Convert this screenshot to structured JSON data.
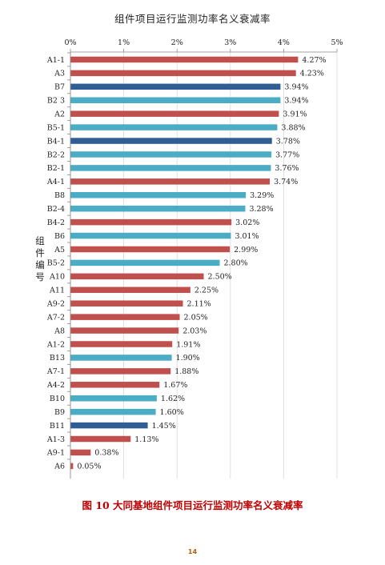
{
  "chart_data": {
    "type": "bar",
    "orientation": "horizontal",
    "title": "组件项目运行监测功率名义衰减率",
    "ylabel": "组件编号",
    "xlim": [
      0,
      5
    ],
    "x_ticks": [
      "0%",
      "1%",
      "2%",
      "3%",
      "4%",
      "5%"
    ],
    "gridlines": true,
    "categories": [
      "A1-1",
      "A3",
      "B7",
      "B2 3",
      "A2",
      "B5-1",
      "B4-1",
      "B2-2",
      "B2-1",
      "A4-1",
      "B8",
      "B2-4",
      "B4-2",
      "B6",
      "A5",
      "B5-2",
      "A10",
      "A11",
      "A9-2",
      "A7-2",
      "A8",
      "A1-2",
      "B13",
      "A7-1",
      "A4-2",
      "B10",
      "B9",
      "B11",
      "A1-3",
      "A9-1",
      "A6"
    ],
    "values": [
      4.27,
      4.23,
      3.94,
      3.94,
      3.91,
      3.88,
      3.78,
      3.77,
      3.76,
      3.74,
      3.29,
      3.28,
      3.02,
      3.01,
      2.99,
      2.8,
      2.5,
      2.25,
      2.11,
      2.05,
      2.03,
      1.91,
      1.9,
      1.88,
      1.67,
      1.62,
      1.6,
      1.45,
      1.13,
      0.38,
      0.05
    ],
    "labels": [
      "4.27%",
      "4.23%",
      "3.94%",
      "3.94%",
      "3.91%",
      "3.88%",
      "3.78%",
      "3.77%",
      "3.76%",
      "3.74%",
      "3.29%",
      "3.28%",
      "3.02%",
      "3.01%",
      "2.99%",
      "2.80%",
      "2.50%",
      "2.25%",
      "2.11%",
      "2.05%",
      "2.03%",
      "1.91%",
      "1.90%",
      "1.88%",
      "1.67%",
      "1.62%",
      "1.60%",
      "1.45%",
      "1.13%",
      "0.38%",
      "0.05%"
    ],
    "bar_colors": [
      "#c0504d",
      "#c0504d",
      "#2f5d94",
      "#4bacc6",
      "#c0504d",
      "#4bacc6",
      "#2f5d94",
      "#4bacc6",
      "#4bacc6",
      "#c0504d",
      "#4bacc6",
      "#4bacc6",
      "#c0504d",
      "#4bacc6",
      "#c0504d",
      "#4bacc6",
      "#c0504d",
      "#c0504d",
      "#c0504d",
      "#c0504d",
      "#c0504d",
      "#c0504d",
      "#4bacc6",
      "#c0504d",
      "#c0504d",
      "#4bacc6",
      "#4bacc6",
      "#2f5d94",
      "#c0504d",
      "#c0504d",
      "#c0504d"
    ],
    "colors": {
      "red": "#c0504d",
      "cyan": "#4bacc6",
      "navy": "#2f5d94",
      "grid": "#d9d9d9"
    }
  },
  "caption": "图 10  大同基地组件项目运行监测功率名义衰减率",
  "page_number": "14"
}
